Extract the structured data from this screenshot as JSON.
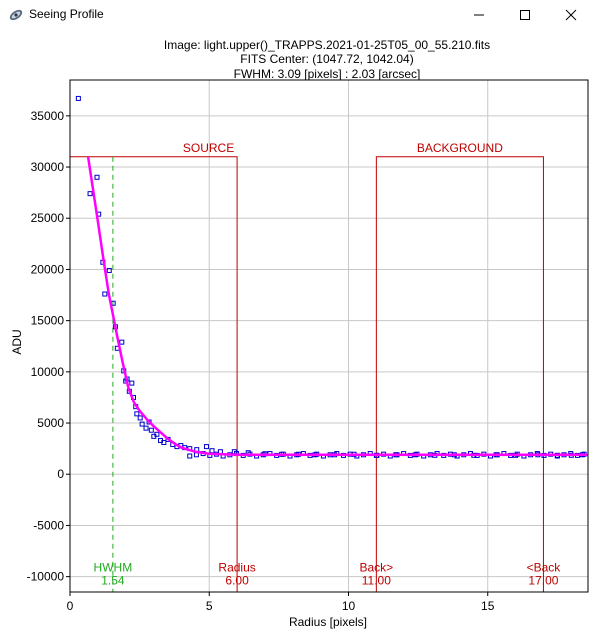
{
  "window": {
    "title": "Seeing Profile"
  },
  "icons": {
    "app": "seeing-profile-icon",
    "minimize": "minimize-icon",
    "maximize": "maximize-icon",
    "close": "close-icon"
  },
  "colors": {
    "plot_frame": "#000000",
    "grid": "#c8c8c8",
    "aperture": "#c00000",
    "hwhm": "#22aa22",
    "fit": "#ff00ff",
    "points": "#0000cc"
  },
  "header": {
    "line1": "Image: light.upper()_TRAPPS.2021-01-25T05_00_55.210.fits",
    "line2": "FITS Center: (1047.72,  1042.04)",
    "line3": "FWHM: 3.09 [pixels] : 2.03 [arcsec]"
  },
  "chart_data": {
    "type": "scatter",
    "xlabel": "Radius [pixels]",
    "ylabel": "ADU",
    "xlim": [
      0,
      18.6
    ],
    "ylim": [
      -11500,
      38500
    ],
    "xticks": [
      0,
      5,
      10,
      15
    ],
    "yticks": [
      -10000,
      -5000,
      0,
      5000,
      10000,
      15000,
      20000,
      25000,
      30000,
      35000
    ],
    "grid": true,
    "regions": {
      "source": {
        "label": "SOURCE",
        "x_start": 0,
        "x_end": 6.0,
        "y_top": 31000
      },
      "background": {
        "label": "BACKGROUND",
        "x_start": 11.0,
        "x_end": 17.0,
        "y_top": 31000
      }
    },
    "markers": [
      {
        "label": "HWHM",
        "value": "1.54",
        "x": 1.54,
        "kind": "hwhm"
      },
      {
        "label": "Radius",
        "value": "6.00",
        "x": 6.0,
        "kind": "aperture"
      },
      {
        "label": "Back>",
        "value": "11.00",
        "x": 11.0,
        "kind": "aperture"
      },
      {
        "label": "<Back",
        "value": "17.00",
        "x": 17.0,
        "kind": "aperture"
      }
    ],
    "series": [
      {
        "kind": "points",
        "x": [
          0.3,
          0.72,
          0.97,
          1.03,
          1.18,
          1.25,
          1.41,
          1.55,
          1.63,
          1.7,
          1.86,
          1.93,
          2.0,
          2.05,
          2.13,
          2.22,
          2.28,
          2.36,
          2.4,
          2.52,
          2.59,
          2.73,
          2.84,
          2.92,
          3.01,
          3.12,
          3.25,
          3.37,
          3.52,
          3.69,
          3.84,
          3.98,
          4.12,
          4.3,
          4.55,
          4.9,
          5.1,
          5.4,
          5.9,
          6.4,
          7.0,
          7.6,
          8.2,
          8.8,
          9.5,
          10.2,
          11.0,
          11.7,
          12.4,
          13.1,
          13.8,
          14.5,
          15.3,
          16.0,
          16.8,
          17.5,
          18.0,
          18.4
        ],
        "y": [
          36700,
          27400,
          29000,
          25400,
          20700,
          17600,
          19900,
          16700,
          14400,
          12300,
          12900,
          10100,
          9100,
          9300,
          8100,
          8900,
          7500,
          6600,
          5900,
          5500,
          4900,
          4500,
          5100,
          4300,
          3700,
          3900,
          3300,
          3100,
          3400,
          2900,
          2700,
          2800,
          2600,
          2500,
          2400,
          2700,
          2300,
          2200,
          2200,
          2100,
          2000,
          1950,
          1950,
          1900,
          1900,
          1950,
          1850,
          1900,
          1900,
          1850,
          1900,
          1850,
          1900,
          1850,
          1900,
          1850,
          1850,
          1900
        ]
      },
      {
        "kind": "fit",
        "x": [
          0.65,
          0.8,
          1.0,
          1.2,
          1.4,
          1.54,
          1.7,
          1.9,
          2.1,
          2.3,
          2.5,
          2.75,
          3.0,
          3.25,
          3.5,
          3.75,
          4.0,
          4.5,
          5.0,
          5.5,
          6.0,
          8.0,
          10.0,
          12.0,
          14.0,
          16.0,
          18.0,
          18.6
        ],
        "y": [
          31000,
          28300,
          24700,
          21000,
          17500,
          15600,
          13400,
          10800,
          8400,
          7000,
          6200,
          5400,
          4700,
          4100,
          3500,
          3000,
          2600,
          2200,
          2000,
          1950,
          1900,
          1900,
          1900,
          1900,
          1900,
          1900,
          1900,
          1900
        ]
      }
    ]
  }
}
